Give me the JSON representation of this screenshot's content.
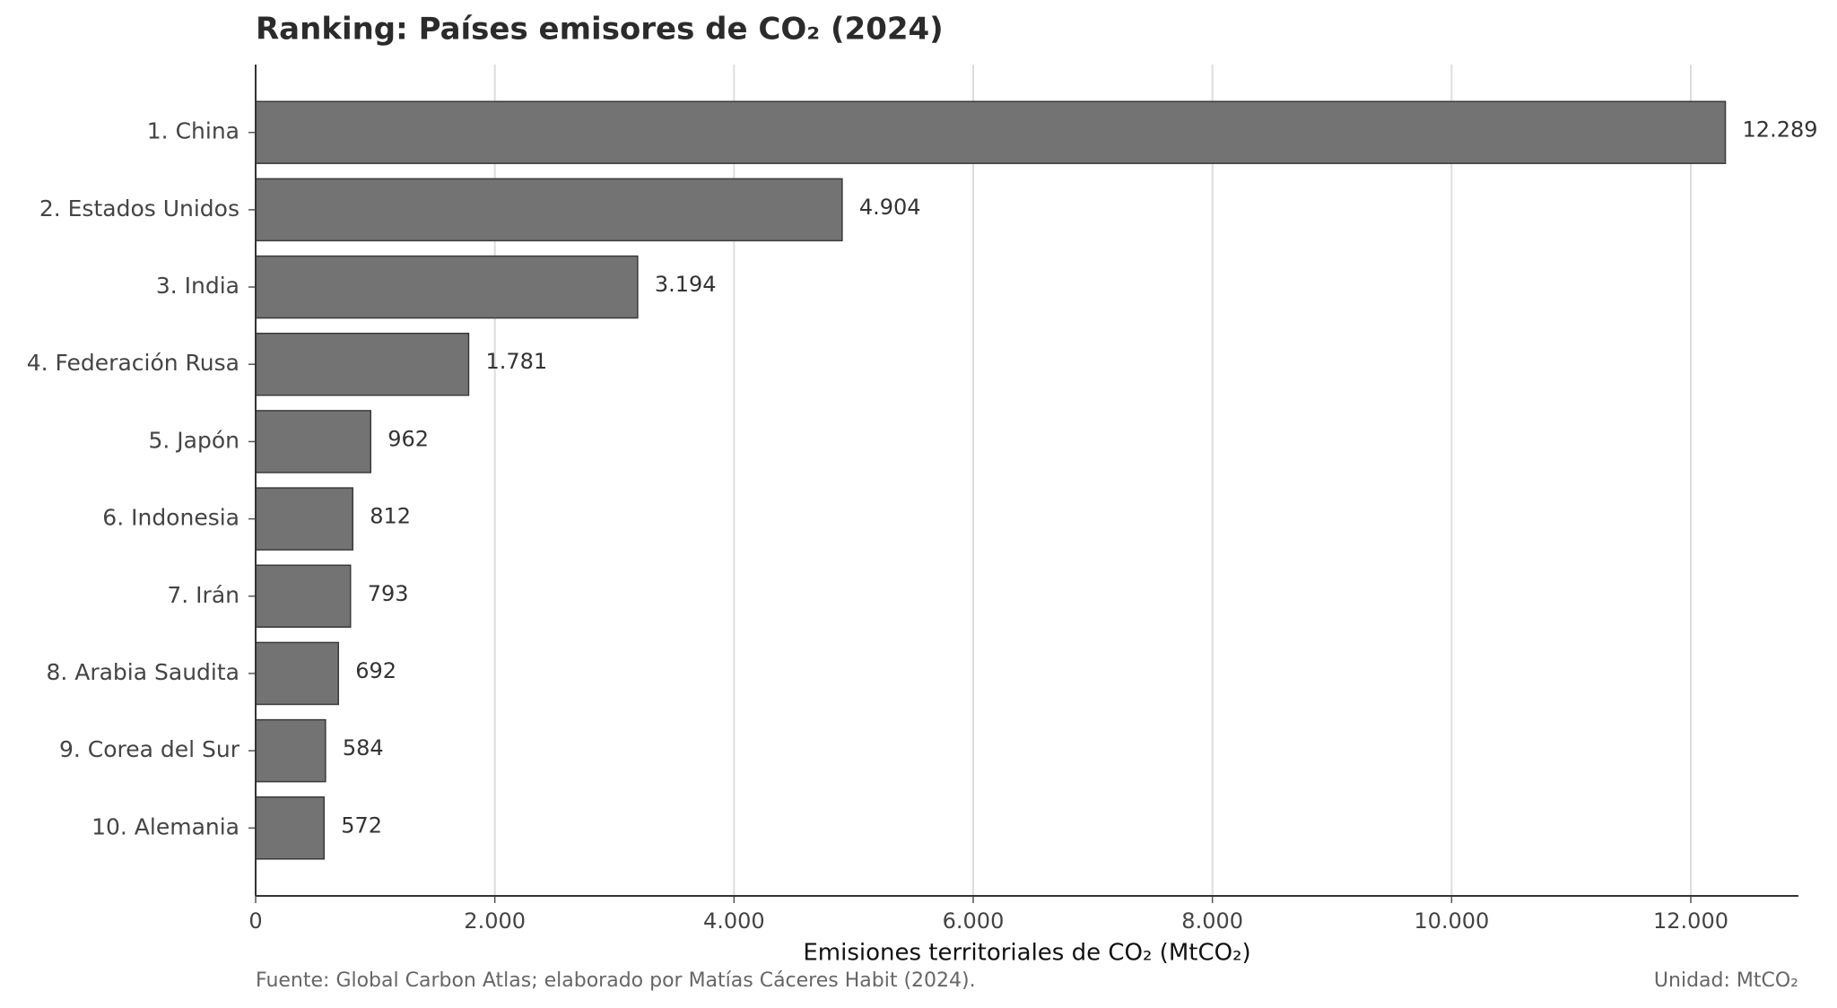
{
  "chart_data": {
    "type": "barh",
    "title": "Ranking: Países emisores de CO₂ (2024)",
    "categories": [
      "1. China",
      "2. Estados Unidos",
      "3. India",
      "4. Federación Rusa",
      "5. Japón",
      "6. Indonesia",
      "7. Irán",
      "8. Arabia Saudita",
      "9. Corea del Sur",
      "10. Alemania"
    ],
    "values": [
      12289,
      4904,
      3194,
      1781,
      962,
      812,
      793,
      692,
      584,
      572
    ],
    "value_labels": [
      "12.289",
      "4.904",
      "3.194",
      "1.781",
      "962",
      "812",
      "793",
      "692",
      "584",
      "572"
    ],
    "color": "#737373",
    "xlim": [
      0,
      12900
    ],
    "xticks": [
      0,
      {
        "value": 2000,
        "label": "2.000"
      },
      {
        "value": 4000,
        "label": "4.000"
      },
      {
        "value": 6000,
        "label": "6.000"
      },
      {
        "value": 8000,
        "label": "8.000"
      },
      {
        "value": 10000,
        "label": "10.000"
      },
      {
        "value": 12000,
        "label": "12.000"
      }
    ],
    "xlabel": "Emisiones territoriales de CO₂ (MtCO₂)",
    "grid": true,
    "source": "Fuente: Global Carbon Atlas; elaborado por Matías Cáceres Habit (2024).",
    "unit_note": "Unidad: MtCO₂"
  }
}
